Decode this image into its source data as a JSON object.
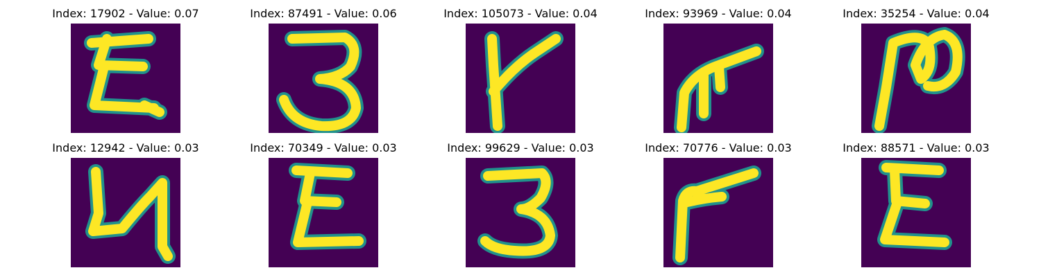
{
  "chart_data": {
    "type": "image-grid",
    "rows": 2,
    "cols": 5,
    "background_color": "#440154",
    "foreground_color": "#fde725",
    "edge_color": "#21918c",
    "panels": [
      {
        "index": "17902",
        "value": "0.07",
        "title": "Index: 17902 - Value: 0.07",
        "glyph": "Ɛ-zigzag"
      },
      {
        "index": "87491",
        "value": "0.06",
        "title": "Index: 87491 - Value: 0.06",
        "glyph": "3"
      },
      {
        "index": "105073",
        "value": "0.04",
        "title": "Index: 105073 - Value: 0.04",
        "glyph": "y-branch"
      },
      {
        "index": "93969",
        "value": "0.04",
        "title": "Index: 93969 - Value: 0.04",
        "glyph": "hook"
      },
      {
        "index": "35254",
        "value": "0.04",
        "title": "Index: 35254 - Value: 0.04",
        "glyph": "n-loop"
      },
      {
        "index": "12942",
        "value": "0.03",
        "title": "Index: 12942 - Value: 0.03",
        "glyph": "h"
      },
      {
        "index": "70349",
        "value": "0.03",
        "title": "Index: 70349 - Value: 0.03",
        "glyph": "Ɛ"
      },
      {
        "index": "99629",
        "value": "0.03",
        "title": "Index: 99629 - Value: 0.03",
        "glyph": "3"
      },
      {
        "index": "70776",
        "value": "0.03",
        "title": "Index: 70776 - Value: 0.03",
        "glyph": "r-angle"
      },
      {
        "index": "88571",
        "value": "0.03",
        "title": "Index: 88571 - Value: 0.03",
        "glyph": "Ɛ"
      }
    ]
  }
}
